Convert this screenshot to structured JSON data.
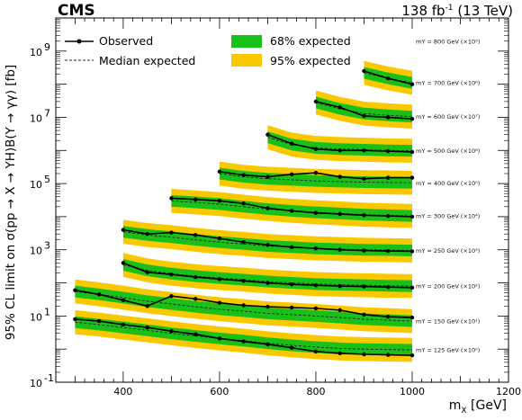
{
  "header": {
    "experiment": "CMS",
    "lumi_value": "138 fb",
    "lumi_exp": "-1",
    "lumi_energy": "(13 TeV)"
  },
  "axes": {
    "ylabel": "95% CL limit on σ(pp → X → YH)B(Y → γγ) [fb]",
    "xlabel_main": "m",
    "xlabel_sub": "X",
    "xlabel_unit": "[GeV]"
  },
  "colors": {
    "band68": "#1ac01a",
    "band95": "#f9c800",
    "observed": "#000000",
    "expected": "#222222"
  },
  "legend": {
    "observed": "Observed",
    "expected": "Median expected",
    "band68": "68% expected",
    "band95": "95% expected"
  },
  "chart_data": {
    "type": "line",
    "x_axis": {
      "range": [
        260,
        1200
      ],
      "ticks": [
        400,
        600,
        800,
        1000,
        1200
      ]
    },
    "y_axis": {
      "scale": "log",
      "range": [
        0.1,
        10000000000.0
      ],
      "ticks": [
        {
          "value": 0.1,
          "label": "10",
          "exp": "-1"
        },
        {
          "value": 10,
          "label": "10",
          "exp": "1"
        },
        {
          "value": 1000,
          "label": "10",
          "exp": "3"
        },
        {
          "value": 100000,
          "label": "10",
          "exp": "5"
        },
        {
          "value": 10000000,
          "label": "10",
          "exp": "7"
        },
        {
          "value": 1000000000,
          "label": "10",
          "exp": "9"
        }
      ]
    },
    "series": [
      {
        "name": "m_Y = 125 GeV (×10^0)",
        "label_text": "mY = 125 GeV (×10⁰)",
        "x": [
          300,
          350,
          400,
          450,
          500,
          550,
          600,
          650,
          700,
          750,
          800,
          850,
          900,
          950,
          1000
        ],
        "observed": [
          8.0,
          7.0,
          5.5,
          4.5,
          3.5,
          2.8,
          2.1,
          1.7,
          1.4,
          1.1,
          0.85,
          0.75,
          0.7,
          0.67,
          0.65
        ],
        "expected": [
          6.5,
          5.5,
          4.5,
          3.7,
          3.0,
          2.5,
          2.1,
          1.8,
          1.5,
          1.3,
          1.15,
          1.05,
          1.0,
          0.97,
          0.95
        ]
      },
      {
        "name": "m_Y = 150 GeV (×10^1)",
        "label_text": "mY = 150 GeV (×10¹)",
        "x": [
          300,
          350,
          400,
          450,
          500,
          550,
          600,
          650,
          700,
          750,
          800,
          850,
          900,
          950,
          1000
        ],
        "observed": [
          60,
          45,
          30,
          20,
          40,
          33,
          25,
          21,
          19,
          18,
          17,
          15,
          11,
          9.5,
          9
        ],
        "expected": [
          55,
          45,
          36,
          28,
          23,
          19,
          16,
          14,
          12,
          11,
          10,
          9,
          8,
          7.5,
          7
        ]
      },
      {
        "name": "m_Y = 200 GeV (×10^2)",
        "label_text": "mY = 200 GeV (×10²)",
        "x": [
          400,
          450,
          500,
          550,
          600,
          650,
          700,
          750,
          800,
          850,
          900,
          950,
          1000
        ],
        "observed": [
          400,
          210,
          180,
          150,
          130,
          115,
          100,
          90,
          85,
          80,
          78,
          75,
          72
        ],
        "expected": [
          350,
          240,
          190,
          160,
          140,
          125,
          110,
          100,
          92,
          88,
          85,
          82,
          80
        ]
      },
      {
        "name": "m_Y = 250 GeV (×10^3)",
        "label_text": "mY = 250 GeV (×10³)",
        "x": [
          400,
          450,
          500,
          550,
          600,
          650,
          700,
          750,
          800,
          850,
          900,
          950,
          1000
        ],
        "observed": [
          4000,
          3000,
          3300,
          2800,
          2200,
          1700,
          1400,
          1200,
          1100,
          1000,
          950,
          920,
          900
        ],
        "expected": [
          3500,
          2800,
          2400,
          2000,
          1700,
          1500,
          1300,
          1200,
          1100,
          1050,
          1000,
          980,
          950
        ]
      },
      {
        "name": "m_Y = 300 GeV (×10^4)",
        "label_text": "mY = 300 GeV (×10⁴)",
        "x": [
          500,
          550,
          600,
          650,
          700,
          750,
          800,
          850,
          900,
          950,
          1000
        ],
        "observed": [
          36000,
          33000,
          30000,
          25000,
          18000,
          15000,
          13000,
          12000,
          11000,
          10500,
          10000
        ],
        "expected": [
          30000,
          27000,
          24000,
          20000,
          17000,
          15000,
          13500,
          12500,
          11500,
          11000,
          10500
        ]
      },
      {
        "name": "m_Y = 400 GeV (×10^5)",
        "label_text": "mY = 400 GeV (×10⁵)",
        "x": [
          600,
          650,
          700,
          750,
          800,
          850,
          900,
          950,
          1000
        ],
        "observed": [
          230000,
          180000,
          160000,
          190000,
          210000,
          160000,
          140000,
          150000,
          150000
        ],
        "expected": [
          200000,
          160000,
          140000,
          130000,
          120000,
          115000,
          110000,
          108000,
          105000
        ]
      },
      {
        "name": "m_Y = 500 GeV (×10^6)",
        "label_text": "mY = 500 GeV (×10⁶)",
        "x": [
          700,
          750,
          800,
          850,
          900,
          950,
          1000
        ],
        "observed": [
          3000000,
          1600000,
          1100000,
          1000000,
          1000000,
          950000,
          900000
        ],
        "expected": [
          2500000,
          1500000,
          1200000,
          1100000,
          1050000,
          1000000,
          980000
        ]
      },
      {
        "name": "m_Y = 600 GeV (×10^7)",
        "label_text": "mY = 600 GeV (×10⁷)",
        "x": [
          800,
          850,
          900,
          950,
          1000
        ],
        "observed": [
          30000000,
          20000000,
          11000000,
          10000000,
          9000000
        ],
        "expected": [
          28000000,
          18000000,
          13000000,
          11500000,
          10500000
        ]
      },
      {
        "name": "m_Y = 700 GeV (×10^8)",
        "label_text": "mY = 700 GeV (×10⁸)",
        "x": [
          900,
          950,
          1000
        ],
        "observed": [
          250000000,
          150000000,
          100000000
        ],
        "expected": [
          220000000,
          150000000,
          110000000
        ]
      },
      {
        "name": "m_Y = 800 GeV (×10^9)",
        "label_text": "mY = 800 GeV (×10⁹)",
        "x": [],
        "observed": [],
        "expected": []
      }
    ],
    "band_widths": {
      "band68": 1.5,
      "band95": 2.3
    }
  }
}
